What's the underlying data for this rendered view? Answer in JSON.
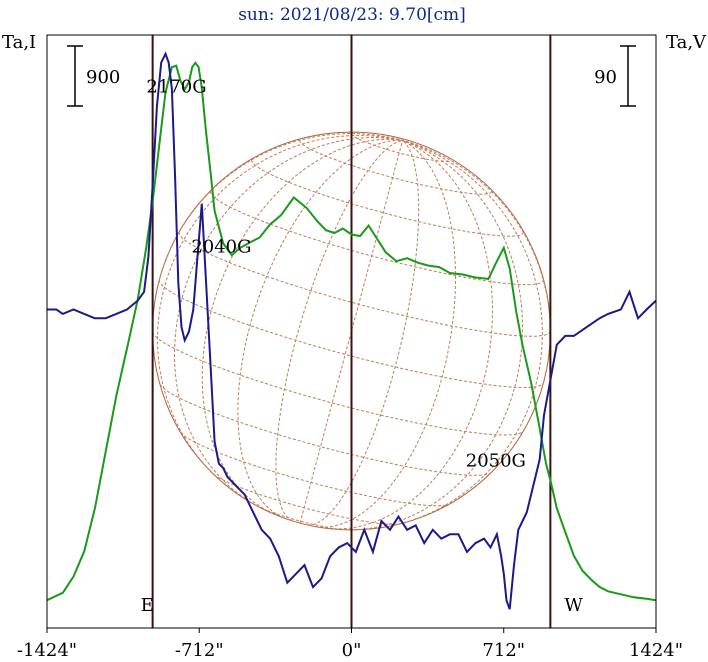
{
  "chart_data": {
    "type": "line",
    "title": "sun: 2021/08/23: 9.70[cm]",
    "ylabel_left": "Ta,I",
    "ylabel_right": "Ta,V",
    "x_tick_labels": [
      "-1424\"",
      "-712\"",
      "0\"",
      "712\"",
      "1424\""
    ],
    "x_ticks": [
      -1424,
      -712,
      0,
      712,
      1424
    ],
    "xlim": [
      -1424,
      1424
    ],
    "limb_markers": [
      {
        "x": -930,
        "label": "E"
      },
      {
        "x": 0,
        "label": ""
      },
      {
        "x": 930,
        "label": "W"
      }
    ],
    "scale_bars": [
      {
        "side": "left",
        "label": "900",
        "value": 900
      },
      {
        "side": "right",
        "label": "90",
        "value": 90
      }
    ],
    "ylim_I": [
      -120,
      3750
    ],
    "ylim_V": [
      -350,
      300
    ],
    "annotations": [
      {
        "text": "2170G",
        "x": -800,
        "y_I": 3430
      },
      {
        "text": "2040G",
        "x": -590,
        "y_I": 2350
      },
      {
        "text": "2050G",
        "x": 712,
        "y_V": -178
      }
    ],
    "series": [
      {
        "name": "Ta,I",
        "color": "#1a9a1a",
        "x": [
          -1424,
          -1350,
          -1300,
          -1250,
          -1200,
          -1150,
          -1100,
          -1050,
          -1000,
          -960,
          -930,
          -900,
          -870,
          -840,
          -820,
          -800,
          -780,
          -760,
          -745,
          -730,
          -715,
          -700,
          -680,
          -660,
          -640,
          -600,
          -560,
          -520,
          -470,
          -430,
          -380,
          -330,
          -270,
          -210,
          -160,
          -120,
          -80,
          -40,
          0,
          40,
          80,
          120,
          160,
          210,
          260,
          310,
          360,
          410,
          460,
          520,
          580,
          640,
          680,
          712,
          740,
          770,
          800,
          840,
          880,
          910,
          930,
          960,
          1000,
          1040,
          1080,
          1120,
          1160,
          1200,
          1260,
          1320,
          1380,
          1424
        ],
        "values": [
          0,
          50,
          160,
          330,
          620,
          1000,
          1380,
          1700,
          2030,
          2380,
          2690,
          3060,
          3430,
          3600,
          3610,
          3510,
          3450,
          3500,
          3600,
          3630,
          3600,
          3460,
          3160,
          2900,
          2630,
          2410,
          2330,
          2380,
          2420,
          2450,
          2540,
          2600,
          2720,
          2650,
          2560,
          2500,
          2480,
          2510,
          2470,
          2460,
          2530,
          2440,
          2350,
          2290,
          2310,
          2280,
          2260,
          2250,
          2210,
          2200,
          2180,
          2170,
          2290,
          2380,
          2240,
          1950,
          1720,
          1470,
          1160,
          920,
          810,
          620,
          460,
          300,
          200,
          140,
          90,
          60,
          40,
          20,
          10,
          0
        ]
      },
      {
        "name": "Ta,V",
        "color": "#1a1a8c",
        "x": [
          -1424,
          -1380,
          -1350,
          -1300,
          -1250,
          -1200,
          -1150,
          -1100,
          -1050,
          -1000,
          -970,
          -950,
          -930,
          -910,
          -890,
          -870,
          -855,
          -840,
          -825,
          -810,
          -795,
          -780,
          -760,
          -740,
          -720,
          -700,
          -680,
          -660,
          -640,
          -620,
          -600,
          -580,
          -560,
          -540,
          -500,
          -460,
          -420,
          -380,
          -340,
          -300,
          -260,
          -220,
          -180,
          -140,
          -100,
          -60,
          -20,
          20,
          60,
          100,
          140,
          180,
          220,
          260,
          300,
          340,
          380,
          420,
          460,
          500,
          540,
          580,
          620,
          650,
          680,
          700,
          712,
          725,
          740,
          760,
          780,
          800,
          820,
          840,
          860,
          880,
          900,
          930,
          960,
          1000,
          1040,
          1100,
          1160,
          1200,
          1260,
          1300,
          1340,
          1380,
          1424
        ],
        "values": [
          0,
          0,
          -5,
          0,
          -5,
          -10,
          -10,
          -5,
          0,
          10,
          20,
          60,
          140,
          230,
          280,
          290,
          280,
          250,
          150,
          30,
          -20,
          -35,
          -25,
          0,
          60,
          120,
          30,
          -60,
          -150,
          -175,
          -180,
          -190,
          -195,
          -200,
          -210,
          -230,
          -250,
          -260,
          -280,
          -310,
          -300,
          -290,
          -315,
          -305,
          -280,
          -270,
          -265,
          -275,
          -250,
          -275,
          -240,
          -250,
          -235,
          -250,
          -245,
          -265,
          -250,
          -260,
          -255,
          -255,
          -275,
          -265,
          -260,
          -270,
          -255,
          -280,
          -300,
          -330,
          -340,
          -290,
          -250,
          -240,
          -230,
          -210,
          -190,
          -170,
          -120,
          -80,
          -40,
          -30,
          -30,
          -20,
          -10,
          -5,
          0,
          20,
          -10,
          0,
          10
        ]
      }
    ]
  }
}
